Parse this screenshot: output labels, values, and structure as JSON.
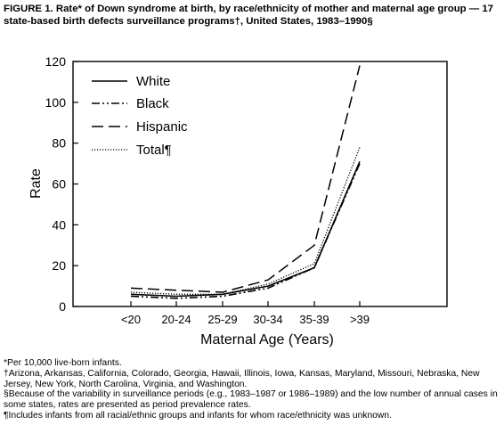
{
  "figure": {
    "title": "FIGURE 1. Rate* of Down syndrome at birth, by race/ethnicity of mother and maternal age group — 17 state-based birth defects surveillance programs†, United States, 1983–1990§",
    "footnotes": [
      "*Per 10,000 live-born infants.",
      "†Arizona, Arkansas, California, Colorado, Georgia, Hawaii, Illinois, Iowa, Kansas, Maryland, Missouri, Nebraska, New Jersey, New York, North Carolina, Virginia, and Washington.",
      "§Because of the variability in surveillance periods (e.g., 1983–1987 or 1986–1989) and the low number of annual cases in some states, rates are presented as period prevalence rates.",
      "¶Includes infants from all racial/ethnic groups and infants for whom race/ethnicity was unknown."
    ]
  },
  "chart_data": {
    "type": "line",
    "title": "",
    "xlabel": "Maternal Age (Years)",
    "ylabel": "Rate",
    "categories": [
      "<20",
      "20-24",
      "25-29",
      "30-34",
      "35-39",
      ">39"
    ],
    "ylim": [
      0,
      120
    ],
    "yticks": [
      0,
      20,
      40,
      60,
      80,
      100,
      120
    ],
    "grid": false,
    "legend_position": "top-left",
    "series": [
      {
        "name": "White",
        "style": "solid",
        "values": [
          6,
          5,
          6,
          10,
          19,
          71
        ]
      },
      {
        "name": "Black",
        "style": "dash-dot-dot",
        "values": [
          5,
          4,
          5,
          9,
          19,
          70
        ]
      },
      {
        "name": "Hispanic",
        "style": "long-dash",
        "values": [
          9,
          8,
          7,
          13,
          30,
          118
        ]
      },
      {
        "name": "Total¶",
        "style": "dotted",
        "values": [
          7,
          6,
          6,
          11,
          21,
          78
        ]
      }
    ]
  }
}
